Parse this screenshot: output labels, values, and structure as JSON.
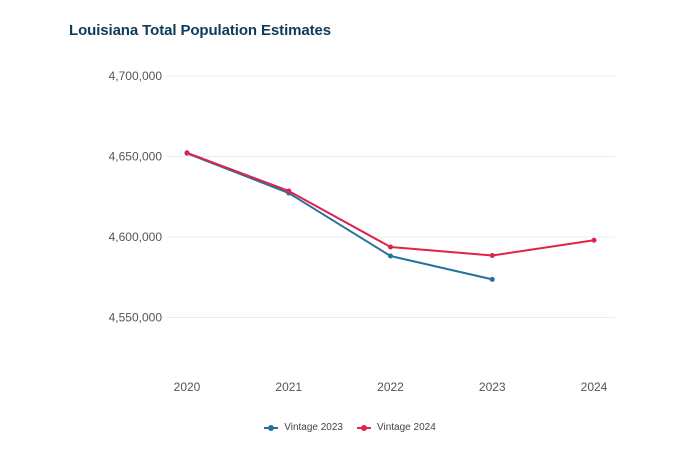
{
  "chart_data": {
    "type": "line",
    "title": "Louisiana Total Population Estimates",
    "xlabel": "",
    "ylabel": "",
    "categories": [
      "2020",
      "2021",
      "2022",
      "2023",
      "2024"
    ],
    "yticks": [
      4550000,
      4600000,
      4650000,
      4700000
    ],
    "ytick_labels": [
      "4,550,000",
      "4,600,000",
      "4,650,000",
      "4,700,000"
    ],
    "ylim": [
      4500000,
      4700000
    ],
    "grid": true,
    "legend_position": "bottom-center",
    "series": [
      {
        "name": "Vintage 2023",
        "color": "#24739c",
        "values": [
          4652000,
          4627300,
          4588200,
          4573700,
          null
        ]
      },
      {
        "name": "Vintage 2024",
        "color": "#e0234b",
        "values": [
          4652300,
          4628600,
          4593800,
          4588500,
          4598000
        ]
      }
    ]
  },
  "header": {
    "title": "Louisiana Total Population Estimates"
  }
}
